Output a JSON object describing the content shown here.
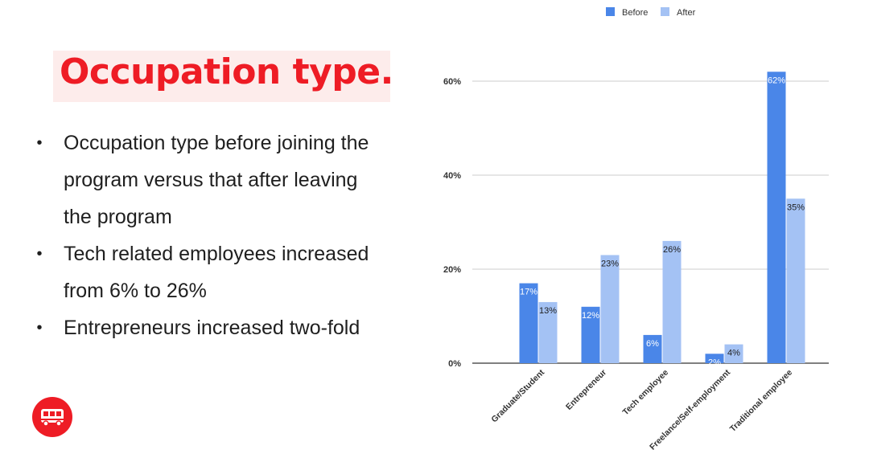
{
  "slide": {
    "title": "Occupation type.",
    "bullets": [
      "Occupation type before joining the program versus that after leaving the program",
      "Tech related employees increased from 6% to 26%",
      "Entrepreneurs increased two-fold"
    ],
    "bullet_lines": [
      [
        "Occupation type before joining the",
        "program versus that after leaving",
        "the program"
      ],
      [
        "Tech related employees increased",
        "from 6% to 26%"
      ],
      [
        "Entrepreneurs increased two-fold"
      ]
    ],
    "bullet_symbol": "•",
    "logo_icon": "bus-icon",
    "colors": {
      "title": "#ee1c25",
      "title_bg": "#fdeceb",
      "logo_bg": "#ee1c25",
      "before": "#4a86e8",
      "after": "#a4c2f4"
    }
  },
  "chart_data": {
    "type": "bar",
    "title": "",
    "xlabel": "",
    "ylabel": "",
    "categories": [
      "Graduate/Student",
      "Entrepreneur",
      "Tech employee",
      "Freelance/Self-employment",
      "Traditional employee"
    ],
    "series": [
      {
        "name": "Before",
        "values": [
          17,
          12,
          6,
          2,
          62
        ],
        "labels": [
          "17%",
          "12%",
          "6%",
          "2%",
          "62%"
        ],
        "color": "#4a86e8"
      },
      {
        "name": "After",
        "values": [
          13,
          23,
          26,
          4,
          35
        ],
        "labels": [
          "13%",
          "23%",
          "26%",
          "4%",
          "35%"
        ],
        "color": "#a4c2f4"
      }
    ],
    "yticks": [
      0,
      20,
      40,
      60
    ],
    "ytick_labels": [
      "0%",
      "20%",
      "40%",
      "60%"
    ],
    "ylim": [
      0,
      60
    ],
    "grid": true,
    "legend": "top-center"
  }
}
